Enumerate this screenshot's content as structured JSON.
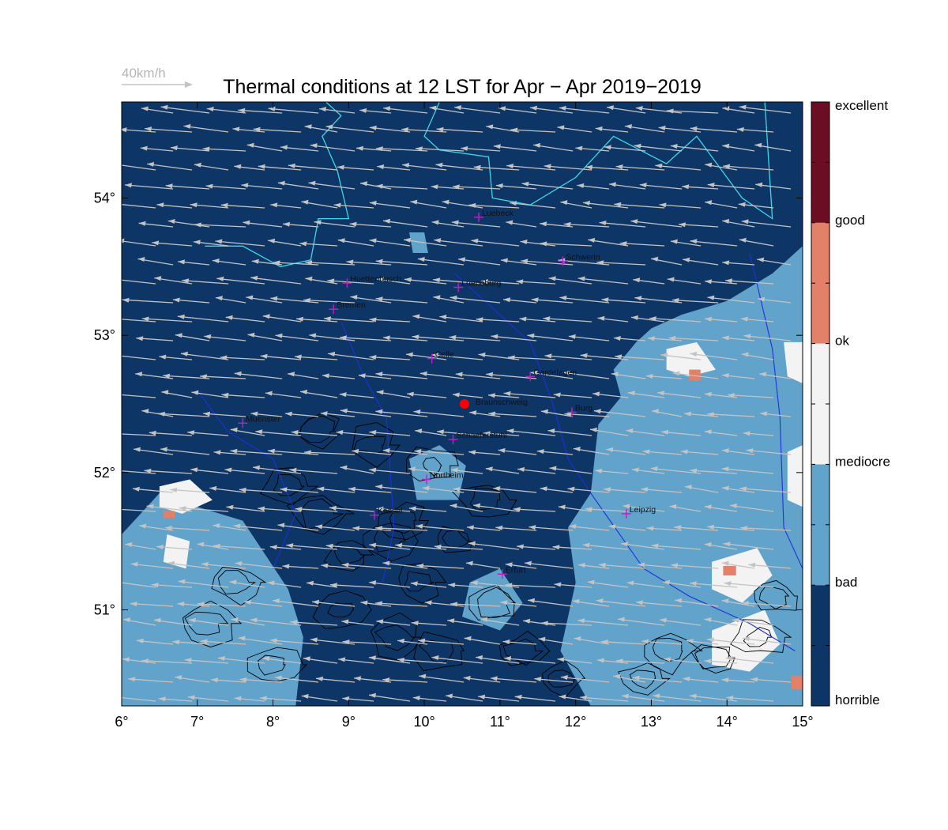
{
  "title": "Thermal conditions at 12 LST for Apr − Apr  2019−2019",
  "wind_scale": {
    "label": "40km/h",
    "speed_kmh": 40
  },
  "chart_data": {
    "type": "heatmap",
    "title": "Thermal conditions at 12 LST for Apr − Apr  2019−2019",
    "xlim": [
      6,
      15
    ],
    "ylim": [
      50.3,
      54.7
    ],
    "x_ticks": [
      {
        "value": 6,
        "label": "6°"
      },
      {
        "value": 7,
        "label": "7°"
      },
      {
        "value": 8,
        "label": "8°"
      },
      {
        "value": 9,
        "label": "9°"
      },
      {
        "value": 10,
        "label": "10°"
      },
      {
        "value": 11,
        "label": "11°"
      },
      {
        "value": 12,
        "label": "12°"
      },
      {
        "value": 13,
        "label": "13°"
      },
      {
        "value": 14,
        "label": "14°"
      },
      {
        "value": 15,
        "label": "15°"
      }
    ],
    "y_ticks": [
      {
        "value": 51,
        "label": "51°"
      },
      {
        "value": 52,
        "label": "52°"
      },
      {
        "value": 53,
        "label": "53°"
      },
      {
        "value": 54,
        "label": "54°"
      }
    ],
    "colorbar": [
      {
        "label": "horrible",
        "color": "#0d3566"
      },
      {
        "label": "bad",
        "color": "#62a3cb"
      },
      {
        "label": "mediocre",
        "color": "#f3f3f3"
      },
      {
        "label": "ok",
        "color": "#e2806a"
      },
      {
        "label": "good",
        "color": "#6b0e24"
      },
      {
        "label": "excellent",
        "color": ""
      }
    ],
    "colors": {
      "horrible": "#0d3566",
      "bad": "#62a3cb",
      "mediocre": "#f3f3f3",
      "ok": "#e2806a",
      "good": "#6b0e24",
      "coast": "#3fd8e6",
      "rivers": "#1f2fdb",
      "wind_arrows": "#c3c3c3",
      "terrain_contours": "#000000",
      "city_marker": "#c020c0",
      "home_marker": "#ff0000"
    },
    "cities": [
      {
        "name": "Luebeck",
        "lon": 10.72,
        "lat": 53.86
      },
      {
        "name": "Schwerin",
        "lon": 11.83,
        "lat": 53.54
      },
      {
        "name": "Huettenbusch",
        "lon": 8.98,
        "lat": 53.38
      },
      {
        "name": "Lueneburg",
        "lon": 10.45,
        "lat": 53.35
      },
      {
        "name": "Bremen",
        "lon": 8.8,
        "lat": 53.19
      },
      {
        "name": "Celle",
        "lon": 10.1,
        "lat": 52.83
      },
      {
        "name": "Gardelegen",
        "lon": 11.4,
        "lat": 52.7
      },
      {
        "name": "Burg",
        "lon": 11.95,
        "lat": 52.44
      },
      {
        "name": "Muenster",
        "lon": 7.6,
        "lat": 52.36
      },
      {
        "name": "Schaeferstuhl",
        "lon": 10.38,
        "lat": 52.24
      },
      {
        "name": "Northeim",
        "lon": 10.03,
        "lat": 51.95
      },
      {
        "name": "Kassel",
        "lon": 9.34,
        "lat": 51.69
      },
      {
        "name": "Leipzig",
        "lon": 12.67,
        "lat": 51.7
      },
      {
        "name": "Erfurt",
        "lon": 11.03,
        "lat": 51.26
      }
    ],
    "home_site": {
      "name": "Braunschweig",
      "lon": 10.53,
      "lat": 52.5
    },
    "regions": [
      {
        "class": "bad",
        "polygon": [
          [
            12.2,
            51.85
          ],
          [
            12.3,
            52.35
          ],
          [
            12.6,
            52.55
          ],
          [
            12.5,
            52.75
          ],
          [
            12.8,
            52.95
          ],
          [
            13.0,
            53.05
          ],
          [
            13.4,
            53.15
          ],
          [
            14.0,
            53.25
          ],
          [
            14.6,
            53.45
          ],
          [
            15.0,
            53.65
          ],
          [
            15.0,
            50.3
          ],
          [
            12.2,
            50.3
          ],
          [
            11.8,
            50.7
          ],
          [
            12.0,
            51.2
          ],
          [
            11.9,
            51.6
          ]
        ]
      },
      {
        "class": "bad",
        "polygon": [
          [
            6.0,
            51.55
          ],
          [
            6.5,
            51.85
          ],
          [
            7.0,
            51.75
          ],
          [
            7.6,
            51.65
          ],
          [
            7.9,
            51.4
          ],
          [
            8.2,
            51.15
          ],
          [
            8.4,
            50.8
          ],
          [
            8.3,
            50.3
          ],
          [
            6.0,
            50.3
          ]
        ]
      },
      {
        "class": "bad",
        "polygon": [
          [
            9.8,
            52.1
          ],
          [
            10.2,
            52.2
          ],
          [
            10.55,
            52.05
          ],
          [
            10.45,
            51.8
          ],
          [
            9.9,
            51.8
          ]
        ]
      },
      {
        "class": "bad",
        "polygon": [
          [
            10.6,
            51.2
          ],
          [
            11.0,
            51.3
          ],
          [
            11.3,
            51.05
          ],
          [
            11.0,
            50.85
          ],
          [
            10.5,
            50.95
          ]
        ]
      },
      {
        "class": "bad",
        "polygon": [
          [
            9.8,
            53.75
          ],
          [
            10.0,
            53.75
          ],
          [
            10.05,
            53.6
          ],
          [
            9.85,
            53.6
          ]
        ]
      },
      {
        "class": "mediocre",
        "polygon": [
          [
            13.2,
            52.9
          ],
          [
            13.6,
            52.95
          ],
          [
            13.85,
            52.75
          ],
          [
            13.5,
            52.7
          ],
          [
            13.2,
            52.75
          ]
        ]
      },
      {
        "class": "mediocre",
        "polygon": [
          [
            13.8,
            51.35
          ],
          [
            14.4,
            51.45
          ],
          [
            14.6,
            51.25
          ],
          [
            14.2,
            51.05
          ],
          [
            13.8,
            51.15
          ]
        ]
      },
      {
        "class": "mediocre",
        "polygon": [
          [
            13.8,
            50.85
          ],
          [
            14.5,
            51.0
          ],
          [
            14.7,
            50.75
          ],
          [
            14.3,
            50.55
          ],
          [
            13.8,
            50.6
          ]
        ]
      },
      {
        "class": "mediocre",
        "polygon": [
          [
            14.8,
            52.15
          ],
          [
            15.0,
            52.2
          ],
          [
            15.0,
            51.75
          ],
          [
            14.8,
            51.8
          ]
        ]
      },
      {
        "class": "mediocre",
        "polygon": [
          [
            14.75,
            52.95
          ],
          [
            15.0,
            52.95
          ],
          [
            15.0,
            52.65
          ],
          [
            14.8,
            52.7
          ]
        ]
      },
      {
        "class": "mediocre",
        "polygon": [
          [
            6.5,
            51.9
          ],
          [
            6.9,
            51.95
          ],
          [
            7.2,
            51.8
          ],
          [
            6.8,
            51.7
          ],
          [
            6.5,
            51.75
          ]
        ]
      },
      {
        "class": "mediocre",
        "polygon": [
          [
            6.6,
            51.55
          ],
          [
            6.9,
            51.5
          ],
          [
            6.85,
            51.3
          ],
          [
            6.55,
            51.35
          ]
        ]
      },
      {
        "class": "ok",
        "polygon": [
          [
            13.5,
            52.75
          ],
          [
            13.65,
            52.75
          ],
          [
            13.65,
            52.67
          ],
          [
            13.5,
            52.67
          ]
        ]
      },
      {
        "class": "ok",
        "polygon": [
          [
            13.95,
            51.32
          ],
          [
            14.12,
            51.32
          ],
          [
            14.12,
            51.25
          ],
          [
            13.95,
            51.25
          ]
        ]
      },
      {
        "class": "ok",
        "polygon": [
          [
            6.55,
            51.72
          ],
          [
            6.7,
            51.72
          ],
          [
            6.7,
            51.67
          ],
          [
            6.55,
            51.67
          ]
        ]
      },
      {
        "class": "ok",
        "polygon": [
          [
            14.85,
            50.52
          ],
          [
            15.0,
            50.52
          ],
          [
            15.0,
            50.42
          ],
          [
            14.85,
            50.42
          ]
        ]
      }
    ]
  }
}
